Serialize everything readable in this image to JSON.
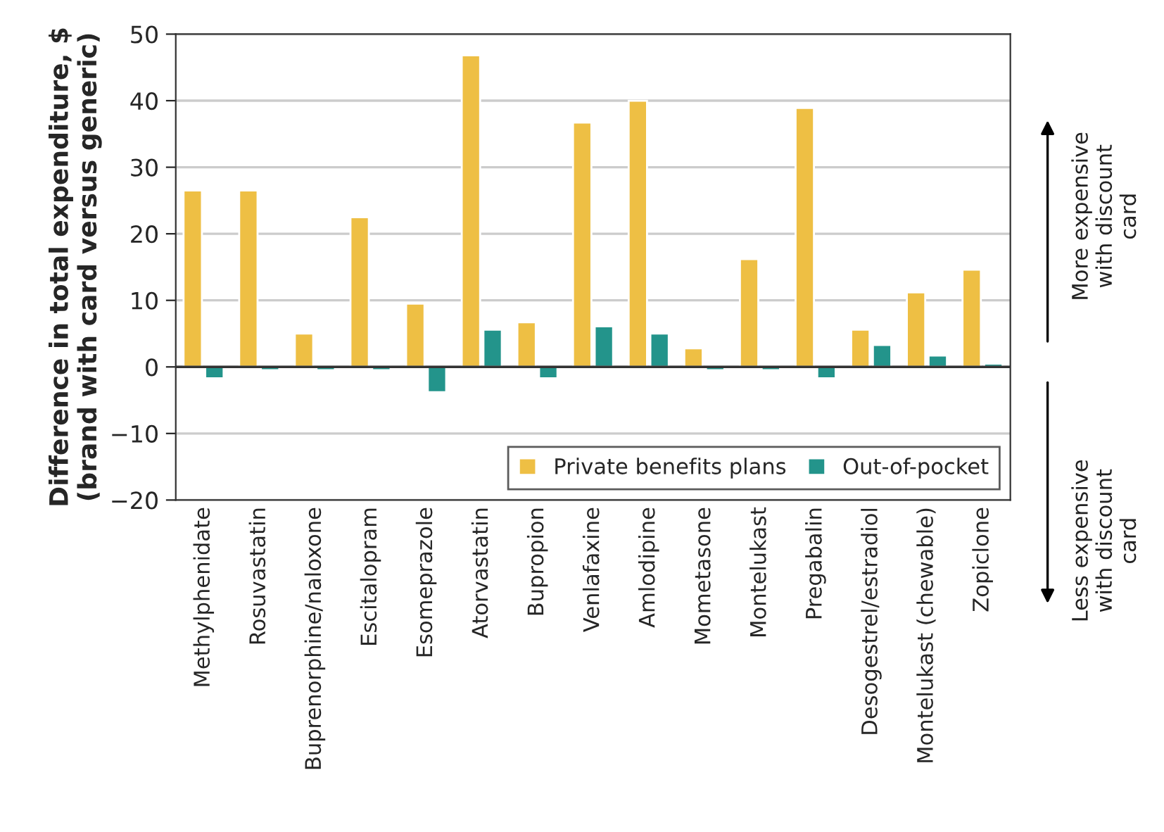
{
  "chart_data": {
    "type": "bar",
    "ylabel": "Difference in total expenditure, $\n(brand with card versus generic)",
    "categories": [
      "Methylphenidate",
      "Rosuvastatin",
      "Buprenorphine/naloxone",
      "Escitalopram",
      "Esomeprazole",
      "Atorvastatin",
      "Bupropion",
      "Venlafaxine",
      "Amlodipine",
      "Mometasone",
      "Montelukast",
      "Pregabalin",
      "Desogestrel/estradiol",
      "Montelukast (chewable)",
      "Zopiclone"
    ],
    "series": [
      {
        "name": "Private benefits plans",
        "color": "#eebf44",
        "values": [
          26.5,
          26.5,
          5,
          22.5,
          9.5,
          46.8,
          6.7,
          36.7,
          40,
          2.8,
          16.2,
          38.9,
          5.6,
          11.2,
          14.6
        ]
      },
      {
        "name": "Out-of-pocket",
        "color": "#23948b",
        "values": [
          -1.7,
          -0.5,
          -0.5,
          -0.5,
          -3.8,
          5.6,
          -1.7,
          6.1,
          5,
          -0.5,
          -0.5,
          -1.7,
          3.3,
          1.7,
          0.5
        ]
      }
    ],
    "ylim": [
      -20,
      50
    ],
    "yticks": [
      {
        "value": -20,
        "label": "−20"
      },
      {
        "value": -10,
        "label": "−10"
      },
      0,
      10,
      20,
      30,
      40,
      50
    ],
    "grid": "y",
    "legend": "bottom right",
    "annotations": [
      "More expensive\nwith discount\ncard",
      "Less expensive\nwith discount\ncard"
    ]
  }
}
